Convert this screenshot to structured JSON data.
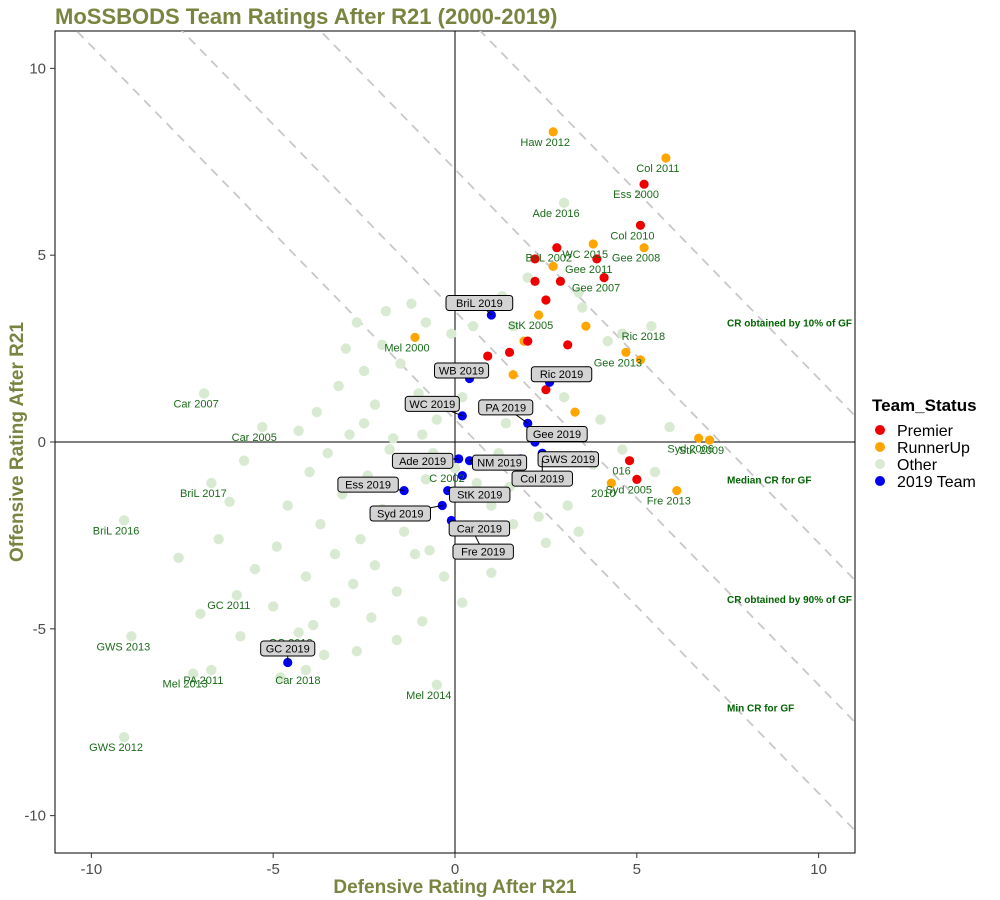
{
  "colors": {
    "title": "#7a8441",
    "label_green": "#1a6b1a",
    "line_label": "#006400",
    "premier": "#ee0000",
    "runnerup": "#ffa500",
    "other": "#d9ead3",
    "team2019": "#0000ee",
    "dashed": "#c8c8c8",
    "box_fill": "#d3d3d3"
  },
  "chart_data": {
    "type": "scatter",
    "title": "MoSSBODS Team Ratings After R21 (2000-2019)",
    "xlabel": "Defensive Rating After R21",
    "ylabel": "Offensive Rating After R21",
    "xlim": [
      -11,
      11
    ],
    "ylim": [
      -11,
      11
    ],
    "x_ticks": [
      -10,
      -5,
      0,
      5,
      10
    ],
    "y_ticks": [
      -10,
      -5,
      0,
      5,
      10
    ],
    "grid": false,
    "legend": {
      "title": "Team_Status",
      "placement": "right",
      "entries": [
        {
          "name": "Premier",
          "color": "#ee0000"
        },
        {
          "name": "RunnerUp",
          "color": "#ffa500"
        },
        {
          "name": "Other",
          "color": "#d9ead3"
        },
        {
          "name": "2019 Team",
          "color": "#0000ee"
        }
      ]
    },
    "reference_lines": [
      {
        "label": "CR obtained by 10% of GF",
        "sum": 11.7,
        "label_y": 3.2
      },
      {
        "label": "Median CR for GF",
        "sum": 7.3,
        "label_y": -1.0
      },
      {
        "label": "CR obtained by 90% of GF",
        "sum": 3.5,
        "label_y": -4.2
      },
      {
        "label": "Min CR for GF",
        "sum": 0.6,
        "label_y": -7.1
      }
    ],
    "series": [
      {
        "name": "Premier",
        "points": [
          {
            "x": 5.2,
            "y": 6.9,
            "label": "Ess 2000"
          },
          {
            "x": 5.1,
            "y": 5.8,
            "label": "Col 2010"
          },
          {
            "x": 2.8,
            "y": 5.2,
            "label": "BriL 2002"
          },
          {
            "x": 2.2,
            "y": 4.9,
            "label": ""
          },
          {
            "x": 3.9,
            "y": 4.9,
            "label": "Gee 2011"
          },
          {
            "x": 4.1,
            "y": 4.4,
            "label": "Gee 2007"
          },
          {
            "x": 2.2,
            "y": 4.3,
            "label": ""
          },
          {
            "x": 2.9,
            "y": 4.3,
            "label": ""
          },
          {
            "x": 2.5,
            "y": 3.8,
            "label": ""
          },
          {
            "x": 2.0,
            "y": 2.7,
            "label": ""
          },
          {
            "x": 3.1,
            "y": 2.6,
            "label": ""
          },
          {
            "x": 1.5,
            "y": 2.4,
            "label": ""
          },
          {
            "x": 0.9,
            "y": 2.3,
            "label": ""
          },
          {
            "x": 2.5,
            "y": 1.4,
            "label": ""
          },
          {
            "x": 3.1,
            "y": 0.2,
            "label": ""
          },
          {
            "x": 4.8,
            "y": -0.5,
            "label": "016"
          },
          {
            "x": 5.0,
            "y": -1.0,
            "label": "Syd 2005"
          }
        ]
      },
      {
        "name": "RunnerUp",
        "points": [
          {
            "x": 2.7,
            "y": 8.3,
            "label": "Haw 2012"
          },
          {
            "x": 5.8,
            "y": 7.6,
            "label": "Col 2011"
          },
          {
            "x": 3.8,
            "y": 5.3,
            "label": "WC 2015"
          },
          {
            "x": 5.2,
            "y": 5.2,
            "label": "Gee 2008"
          },
          {
            "x": 2.7,
            "y": 4.7,
            "label": ""
          },
          {
            "x": 2.3,
            "y": 3.4,
            "label": "StK 2005"
          },
          {
            "x": 3.6,
            "y": 3.1,
            "label": ""
          },
          {
            "x": -1.1,
            "y": 2.8,
            "label": "Mel 2000"
          },
          {
            "x": 1.9,
            "y": 2.7,
            "label": ""
          },
          {
            "x": 4.7,
            "y": 2.4,
            "label": "Gee 2013"
          },
          {
            "x": 5.1,
            "y": 2.2,
            "label": ""
          },
          {
            "x": 1.6,
            "y": 1.8,
            "label": ""
          },
          {
            "x": 3.3,
            "y": 0.8,
            "label": ""
          },
          {
            "x": 6.7,
            "y": 0.1,
            "label": "Syd 2006"
          },
          {
            "x": 7.0,
            "y": 0.05,
            "label": "StK 2009"
          },
          {
            "x": 0.7,
            "y": -0.5,
            "label": ""
          },
          {
            "x": 4.3,
            "y": -1.1,
            "label": "2010"
          },
          {
            "x": 6.1,
            "y": -1.3,
            "label": "Fre 2013"
          }
        ]
      },
      {
        "name": "2019 Team",
        "points": [
          {
            "x": 1.0,
            "y": 3.4,
            "label": "BriL 2019"
          },
          {
            "x": 0.4,
            "y": 1.7,
            "label": "WB 2019"
          },
          {
            "x": 2.6,
            "y": 1.6,
            "label": "Ric 2019"
          },
          {
            "x": 0.2,
            "y": 0.7,
            "label": "WC 2019"
          },
          {
            "x": 2.0,
            "y": 0.5,
            "label": "PA 2019"
          },
          {
            "x": 2.2,
            "y": 0.0,
            "label": "Gee 2019"
          },
          {
            "x": 2.4,
            "y": -0.3,
            "label": "GWS 2019"
          },
          {
            "x": 0.1,
            "y": -0.45,
            "label": "Ade 2019"
          },
          {
            "x": 0.4,
            "y": -0.5,
            "label": "NM 2019"
          },
          {
            "x": 1.8,
            "y": -0.45,
            "label": ""
          },
          {
            "x": 2.4,
            "y": -0.5,
            "label": "Col 2019"
          },
          {
            "x": 0.2,
            "y": -0.9,
            "label": ""
          },
          {
            "x": -0.2,
            "y": -1.3,
            "label": "StK 2019"
          },
          {
            "x": -1.4,
            "y": -1.3,
            "label": "Ess 2019"
          },
          {
            "x": -0.35,
            "y": -1.7,
            "label": "Syd 2019"
          },
          {
            "x": 0.5,
            "y": -2.4,
            "label": "Fre 2019"
          },
          {
            "x": -0.1,
            "y": -2.1,
            "label": "Car 2019"
          },
          {
            "x": -4.6,
            "y": -5.9,
            "label": "GC 2019"
          }
        ]
      },
      {
        "name": "Other",
        "points": [
          {
            "x": 3.0,
            "y": 6.4,
            "label": "Ade 2016"
          },
          {
            "x": 5.4,
            "y": 3.1,
            "label": "Ric 2018"
          },
          {
            "x": -6.9,
            "y": 1.3,
            "label": "Car 2007"
          },
          {
            "x": -5.3,
            "y": 0.4,
            "label": "Car 2005"
          },
          {
            "x": 0.0,
            "y": -0.7,
            "label": "C 2002"
          },
          {
            "x": -6.7,
            "y": -1.1,
            "label": "BriL 2017"
          },
          {
            "x": -9.1,
            "y": -2.1,
            "label": "BriL 2016"
          },
          {
            "x": -6.0,
            "y": -4.1,
            "label": "GC 2011"
          },
          {
            "x": -8.9,
            "y": -5.2,
            "label": "GWS 2013"
          },
          {
            "x": -4.3,
            "y": -5.1,
            "label": "GC 2012"
          },
          {
            "x": -4.1,
            "y": -6.1,
            "label": "Car 2018"
          },
          {
            "x": -6.7,
            "y": -6.1,
            "label": "PA 2011"
          },
          {
            "x": -7.2,
            "y": -6.2,
            "label": "Mel 2013"
          },
          {
            "x": -0.5,
            "y": -6.5,
            "label": "Mel 2014"
          },
          {
            "x": -9.1,
            "y": -7.9,
            "label": "GWS 2012"
          },
          {
            "x": -1.2,
            "y": 3.7,
            "label": ""
          },
          {
            "x": -0.8,
            "y": 3.2,
            "label": ""
          },
          {
            "x": -2.0,
            "y": 2.6,
            "label": ""
          },
          {
            "x": -1.5,
            "y": 2.1,
            "label": ""
          },
          {
            "x": -2.5,
            "y": 1.9,
            "label": ""
          },
          {
            "x": -3.2,
            "y": 1.5,
            "label": ""
          },
          {
            "x": -1.0,
            "y": 1.3,
            "label": ""
          },
          {
            "x": -2.2,
            "y": 1.0,
            "label": ""
          },
          {
            "x": -3.8,
            "y": 0.8,
            "label": ""
          },
          {
            "x": -4.3,
            "y": 0.3,
            "label": ""
          },
          {
            "x": -2.9,
            "y": 0.2,
            "label": ""
          },
          {
            "x": -1.7,
            "y": 0.1,
            "label": ""
          },
          {
            "x": -3.5,
            "y": -0.3,
            "label": ""
          },
          {
            "x": -5.8,
            "y": -0.5,
            "label": ""
          },
          {
            "x": -4.0,
            "y": -0.8,
            "label": ""
          },
          {
            "x": -2.4,
            "y": -0.9,
            "label": ""
          },
          {
            "x": -3.1,
            "y": -1.4,
            "label": ""
          },
          {
            "x": -4.6,
            "y": -1.7,
            "label": ""
          },
          {
            "x": -2.0,
            "y": -1.8,
            "label": ""
          },
          {
            "x": -3.7,
            "y": -2.2,
            "label": ""
          },
          {
            "x": -2.6,
            "y": -2.6,
            "label": ""
          },
          {
            "x": -1.4,
            "y": -2.4,
            "label": ""
          },
          {
            "x": -3.3,
            "y": -3.0,
            "label": ""
          },
          {
            "x": -2.2,
            "y": -3.3,
            "label": ""
          },
          {
            "x": -1.1,
            "y": -3.0,
            "label": ""
          },
          {
            "x": -4.1,
            "y": -3.6,
            "label": ""
          },
          {
            "x": -2.8,
            "y": -3.8,
            "label": ""
          },
          {
            "x": -1.6,
            "y": -4.0,
            "label": ""
          },
          {
            "x": -3.3,
            "y": -4.3,
            "label": ""
          },
          {
            "x": -2.3,
            "y": -4.7,
            "label": ""
          },
          {
            "x": -5.0,
            "y": -4.4,
            "label": ""
          },
          {
            "x": -3.9,
            "y": -4.9,
            "label": ""
          },
          {
            "x": -5.5,
            "y": -3.4,
            "label": ""
          },
          {
            "x": -0.7,
            "y": -2.9,
            "label": ""
          },
          {
            "x": -0.3,
            "y": -3.6,
            "label": ""
          },
          {
            "x": 1.0,
            "y": -3.5,
            "label": ""
          },
          {
            "x": 1.5,
            "y": -1.2,
            "label": ""
          },
          {
            "x": 1.0,
            "y": -1.7,
            "label": ""
          },
          {
            "x": 2.3,
            "y": -2.0,
            "label": ""
          },
          {
            "x": 2.5,
            "y": -2.7,
            "label": ""
          },
          {
            "x": 3.1,
            "y": -1.7,
            "label": ""
          },
          {
            "x": 1.6,
            "y": -2.2,
            "label": ""
          },
          {
            "x": 0.2,
            "y": 1.2,
            "label": ""
          },
          {
            "x": 1.1,
            "y": 1.0,
            "label": ""
          },
          {
            "x": 1.4,
            "y": 0.5,
            "label": ""
          },
          {
            "x": -0.5,
            "y": 0.6,
            "label": ""
          },
          {
            "x": -0.9,
            "y": 0.2,
            "label": ""
          },
          {
            "x": -0.6,
            "y": -0.3,
            "label": ""
          },
          {
            "x": 3.0,
            "y": 1.2,
            "label": ""
          },
          {
            "x": 3.6,
            "y": 1.9,
            "label": ""
          },
          {
            "x": 4.2,
            "y": 2.7,
            "label": ""
          },
          {
            "x": 3.5,
            "y": 3.6,
            "label": ""
          },
          {
            "x": 4.6,
            "y": 2.9,
            "label": ""
          },
          {
            "x": 3.4,
            "y": 4.0,
            "label": ""
          },
          {
            "x": 1.3,
            "y": 3.9,
            "label": ""
          },
          {
            "x": 1.6,
            "y": 3.1,
            "label": ""
          },
          {
            "x": 2.0,
            "y": 4.4,
            "label": ""
          },
          {
            "x": 4.0,
            "y": 0.6,
            "label": ""
          },
          {
            "x": 4.6,
            "y": -0.2,
            "label": ""
          },
          {
            "x": 3.8,
            "y": -0.6,
            "label": ""
          },
          {
            "x": 5.9,
            "y": 0.4,
            "label": ""
          },
          {
            "x": 5.5,
            "y": -0.8,
            "label": ""
          },
          {
            "x": 3.4,
            "y": -2.4,
            "label": ""
          },
          {
            "x": -6.5,
            "y": -2.6,
            "label": ""
          },
          {
            "x": -7.6,
            "y": -3.1,
            "label": ""
          },
          {
            "x": -5.9,
            "y": -5.2,
            "label": ""
          },
          {
            "x": -7.0,
            "y": -4.6,
            "label": ""
          },
          {
            "x": -4.9,
            "y": -2.8,
            "label": ""
          },
          {
            "x": -6.2,
            "y": -1.6,
            "label": ""
          },
          {
            "x": -3.0,
            "y": 2.5,
            "label": ""
          },
          {
            "x": -2.7,
            "y": 3.2,
            "label": ""
          },
          {
            "x": -1.9,
            "y": 3.5,
            "label": ""
          },
          {
            "x": -0.3,
            "y": 2.0,
            "label": ""
          },
          {
            "x": -0.1,
            "y": 2.9,
            "label": ""
          },
          {
            "x": 0.5,
            "y": 3.1,
            "label": ""
          },
          {
            "x": -1.3,
            "y": -0.6,
            "label": ""
          },
          {
            "x": -1.8,
            "y": -0.2,
            "label": ""
          },
          {
            "x": -2.5,
            "y": 0.5,
            "label": ""
          },
          {
            "x": -0.8,
            "y": -1.0,
            "label": ""
          },
          {
            "x": 0.6,
            "y": -1.1,
            "label": ""
          },
          {
            "x": 1.2,
            "y": -0.3,
            "label": ""
          },
          {
            "x": -1.6,
            "y": -5.3,
            "label": ""
          },
          {
            "x": -2.7,
            "y": -5.6,
            "label": ""
          },
          {
            "x": -0.9,
            "y": -4.8,
            "label": ""
          },
          {
            "x": -3.6,
            "y": -5.7,
            "label": ""
          },
          {
            "x": -4.8,
            "y": -6.3,
            "label": ""
          },
          {
            "x": 0.2,
            "y": -4.3,
            "label": ""
          }
        ]
      }
    ]
  }
}
